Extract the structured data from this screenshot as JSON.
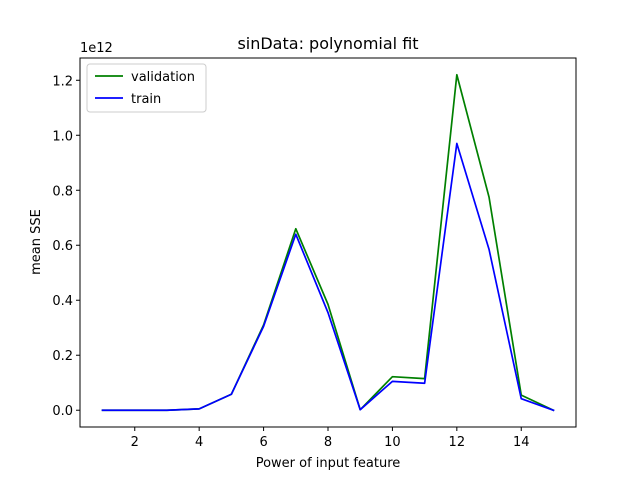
{
  "chart_data": {
    "type": "line",
    "title": "sinData: polynomial fit",
    "xlabel": "Power of input feature",
    "ylabel": "mean SSE",
    "y_offset_label": "1e12",
    "xlim": [
      0.3,
      15.7
    ],
    "ylim": [
      -0.061,
      1.281
    ],
    "xticks": [
      2,
      4,
      6,
      8,
      10,
      12,
      14
    ],
    "yticks": [
      0.0,
      0.2,
      0.4,
      0.6,
      0.8,
      1.0,
      1.2
    ],
    "ytick_labels": [
      "0.0",
      "0.2",
      "0.4",
      "0.6",
      "0.8",
      "1.0",
      "1.2"
    ],
    "legend_position": "upper-left",
    "x": [
      1,
      2,
      3,
      4,
      5,
      6,
      7,
      8,
      9,
      10,
      11,
      12,
      13,
      14,
      15
    ],
    "series": [
      {
        "name": "validation",
        "color": "#008000",
        "values": [
          0.0,
          0.0,
          0.0,
          0.005,
          0.058,
          0.31,
          0.66,
          0.385,
          0.002,
          0.122,
          0.115,
          1.22,
          0.775,
          0.055,
          0.0
        ]
      },
      {
        "name": "train",
        "color": "#0000ff",
        "values": [
          0.0,
          0.0,
          0.0,
          0.005,
          0.058,
          0.305,
          0.64,
          0.355,
          0.002,
          0.105,
          0.098,
          0.97,
          0.585,
          0.042,
          0.0
        ]
      }
    ]
  }
}
